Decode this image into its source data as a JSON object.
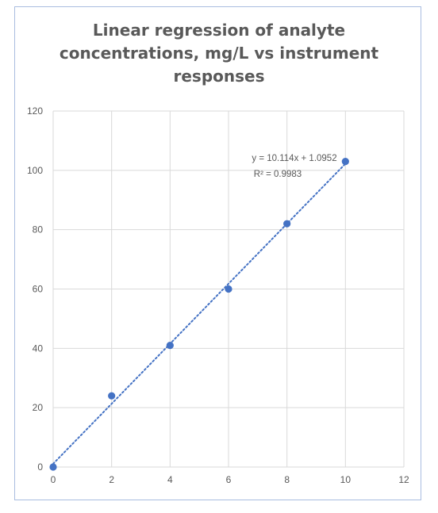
{
  "chart_data": {
    "type": "scatter",
    "title_lines": [
      "Linear regression of analyte",
      "concentrations, mg/L vs instrument",
      "responses"
    ],
    "xlabel": "",
    "ylabel": "",
    "xlim": [
      0,
      12
    ],
    "ylim": [
      0,
      120
    ],
    "x_ticks": [
      0,
      2,
      4,
      6,
      8,
      10,
      12
    ],
    "y_ticks": [
      0,
      20,
      40,
      60,
      80,
      100,
      120
    ],
    "grid": true,
    "legend": "none",
    "series": [
      {
        "x": [
          0,
          2,
          4,
          6,
          8,
          10
        ],
        "y": [
          0,
          24,
          41,
          60,
          82,
          103
        ],
        "color": "#4472c4",
        "marker": "circle"
      }
    ],
    "trendline": {
      "type": "linear",
      "slope": 10.114,
      "intercept": 1.0952,
      "x_range": [
        0,
        10
      ],
      "style": "dotted",
      "color": "#4472c4",
      "equation": "y = 10.114x + 1.0952",
      "r_squared_label": "R² = 0.9983"
    }
  }
}
